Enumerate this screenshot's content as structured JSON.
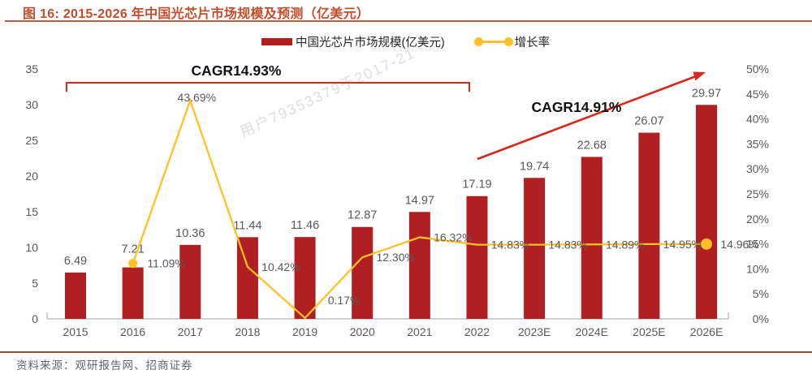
{
  "header": {
    "title": "图 16:  2015-2026 年中国光芯片市场规模及预测（亿美元）"
  },
  "legend": {
    "bar_label": "中国光芯片市场规模(亿美元)",
    "line_label": "增长率"
  },
  "annotations": {
    "cagr_left": "CAGR14.93%",
    "cagr_right": "CAGR14.91%"
  },
  "watermark": "用户79353379于2017-21",
  "footer": {
    "source": "资料来源：观研报告网、招商证券"
  },
  "colors": {
    "bar": "#B01F22",
    "line": "#FFC125",
    "annotation_red": "#D8281E",
    "title": "#C24E2B",
    "rule": "#BE5B41",
    "label_gray": "#595959",
    "cagr_text": "#111111"
  },
  "chart_data": {
    "type": "bar+line",
    "title": "2015-2026 年中国光芯片市场规模及预测（亿美元）",
    "categories": [
      "2015",
      "2016",
      "2017",
      "2018",
      "2019",
      "2020",
      "2021",
      "2022",
      "2023E",
      "2024E",
      "2025E",
      "2026E"
    ],
    "series": [
      {
        "name": "中国光芯片市场规模(亿美元)",
        "type": "bar",
        "axis": "left",
        "values": [
          6.49,
          7.21,
          10.36,
          11.44,
          11.46,
          12.87,
          14.97,
          17.19,
          19.74,
          22.68,
          26.07,
          29.97
        ]
      },
      {
        "name": "增长率",
        "type": "line",
        "axis": "right",
        "unit": "%",
        "values": [
          null,
          11.09,
          43.69,
          10.42,
          0.17,
          12.3,
          16.32,
          14.83,
          14.83,
          14.89,
          14.95,
          14.96
        ]
      }
    ],
    "left_axis": {
      "min": 0,
      "max": 35,
      "step": 5
    },
    "right_axis": {
      "min": 0,
      "max": 50,
      "step": 5,
      "suffix": "%"
    },
    "grid": false,
    "legend_position": "top"
  }
}
